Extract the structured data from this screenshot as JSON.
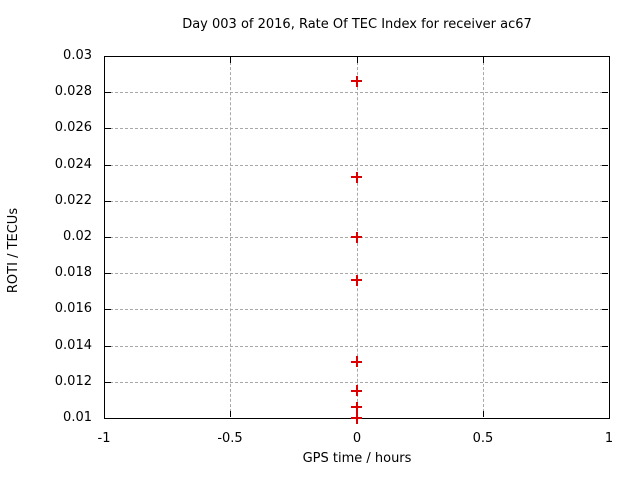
{
  "title": "Day 003 of 2016, Rate Of TEC Index for receiver ac67",
  "colors": {
    "background": "#ffffff",
    "axis": "#000000",
    "grid": "#a8a8a8",
    "marker": "#dd0000",
    "text": "#000000"
  },
  "chart_data": {
    "type": "scatter",
    "title": "Day 003 of 2016, Rate Of TEC Index for receiver ac67",
    "xlabel": "GPS time / hours",
    "ylabel": "ROTI / TECUs",
    "xlim": [
      -1,
      1
    ],
    "ylim": [
      0.01,
      0.03
    ],
    "grid": true,
    "legend": false,
    "marker_style": "plus",
    "marker_color": "#dd0000",
    "x_ticks": [
      {
        "value": -1,
        "label": "-1"
      },
      {
        "value": -0.5,
        "label": "-0.5"
      },
      {
        "value": 0,
        "label": "0"
      },
      {
        "value": 0.5,
        "label": "0.5"
      },
      {
        "value": 1,
        "label": "1"
      }
    ],
    "y_ticks": [
      {
        "value": 0.01,
        "label": "0.01"
      },
      {
        "value": 0.012,
        "label": "0.012"
      },
      {
        "value": 0.014,
        "label": "0.014"
      },
      {
        "value": 0.016,
        "label": "0.016"
      },
      {
        "value": 0.018,
        "label": "0.018"
      },
      {
        "value": 0.02,
        "label": "0.02"
      },
      {
        "value": 0.022,
        "label": "0.022"
      },
      {
        "value": 0.024,
        "label": "0.024"
      },
      {
        "value": 0.026,
        "label": "0.026"
      },
      {
        "value": 0.028,
        "label": "0.028"
      },
      {
        "value": 0.03,
        "label": "0.03"
      }
    ],
    "points": [
      {
        "x": 0,
        "y": 0.0286
      },
      {
        "x": 0,
        "y": 0.0233
      },
      {
        "x": 0,
        "y": 0.02
      },
      {
        "x": 0,
        "y": 0.0176
      },
      {
        "x": 0,
        "y": 0.0131
      },
      {
        "x": 0,
        "y": 0.0115
      },
      {
        "x": 0,
        "y": 0.0106
      },
      {
        "x": 0,
        "y": 0.01
      }
    ]
  }
}
